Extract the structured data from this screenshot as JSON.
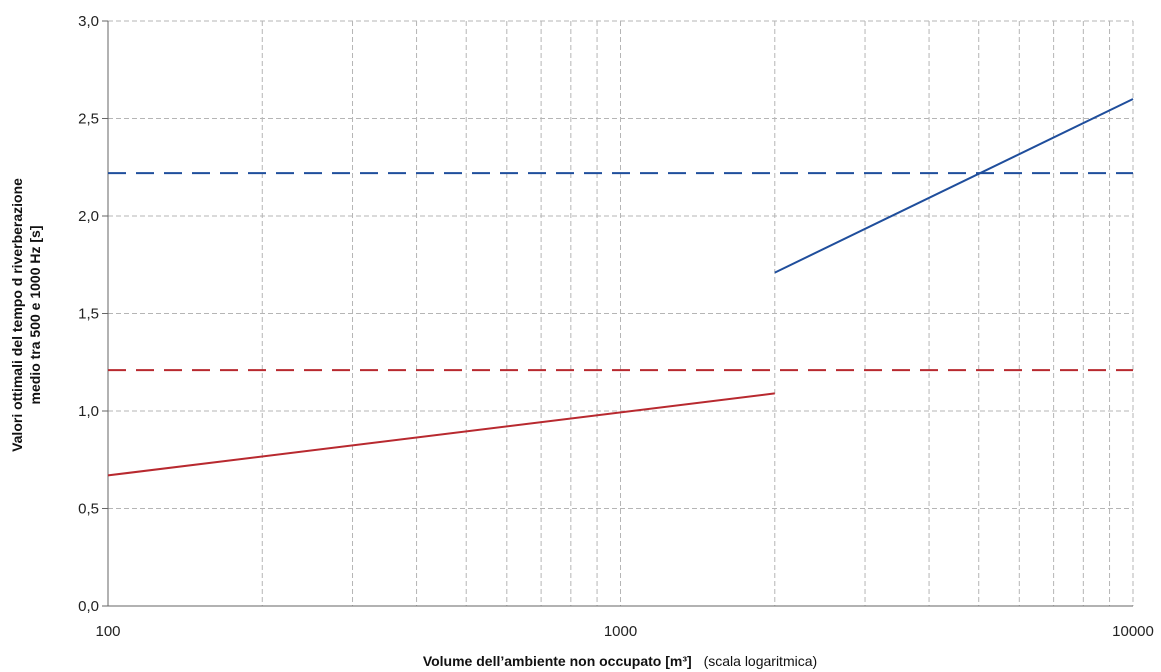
{
  "chart_data": {
    "type": "line",
    "x_scale": "log",
    "xlim": [
      100,
      10000
    ],
    "ylim": [
      0,
      3
    ],
    "grid": true,
    "x_ticks": [
      "100",
      "1000",
      "10000"
    ],
    "y_ticks": [
      "0,0",
      "0,5",
      "1,0",
      "1,5",
      "2,0",
      "2,5",
      "3,0"
    ],
    "xlabel_main": "Volume dell’ambiente non occupato [m³]",
    "xlabel_note": "(scala logaritmica)",
    "ylabel_line1": "Valori ottimali del tempo d riverberazione",
    "ylabel_line2": "medio tra 500 e 1000 Hz [s]",
    "series": [
      {
        "color": "#b8292f",
        "style": "solid",
        "x": [
          100,
          2000
        ],
        "y": [
          0.67,
          1.09
        ]
      },
      {
        "color": "#b8292f",
        "style": "dashed",
        "x": [
          100,
          10000
        ],
        "y": [
          1.21,
          1.21
        ]
      },
      {
        "color": "#1f4e9c",
        "style": "solid",
        "x": [
          2000,
          10000
        ],
        "y": [
          1.71,
          2.6
        ]
      },
      {
        "color": "#1f4e9c",
        "style": "dashed",
        "x": [
          100,
          10000
        ],
        "y": [
          2.22,
          2.22
        ]
      }
    ]
  }
}
